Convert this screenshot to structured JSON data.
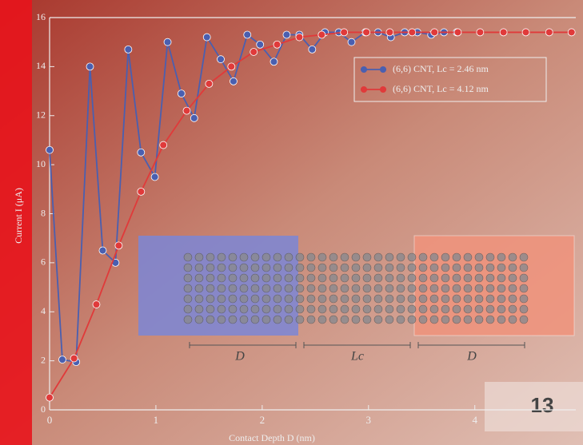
{
  "page_number": "13",
  "chart_data": {
    "type": "line",
    "x_label": "Contact Depth D (nm)",
    "y_label": "Current I (μA)",
    "xlim": [
      0,
      4.95
    ],
    "ylim": [
      0,
      16
    ],
    "xticks": [
      0,
      1,
      2,
      3,
      4
    ],
    "yticks": [
      0,
      2,
      4,
      6,
      8,
      10,
      12,
      14,
      16
    ],
    "legend": "upper right",
    "series": [
      {
        "name": "(6,6) CNT, Lc = 2.46 nm",
        "color": "#4a5fb0",
        "x": [
          0,
          0.12,
          0.25,
          0.38,
          0.5,
          0.62,
          0.74,
          0.86,
          0.99,
          1.11,
          1.24,
          1.36,
          1.48,
          1.61,
          1.73,
          1.86,
          1.98,
          2.11,
          2.23,
          2.35,
          2.47,
          2.59,
          2.72,
          2.84,
          2.97,
          3.09,
          3.21,
          3.34,
          3.46,
          3.59,
          3.71,
          3.83
        ],
        "values": [
          10.6,
          2.05,
          1.95,
          14,
          6.5,
          6.0,
          14.7,
          10.5,
          9.5,
          15.0,
          12.9,
          11.9,
          15.2,
          14.3,
          13.4,
          15.3,
          14.9,
          14.2,
          15.3,
          15.3,
          14.7,
          15.4,
          15.4,
          15.0,
          15.4,
          15.4,
          15.2,
          15.4,
          15.4,
          15.3,
          15.4,
          15.4
        ]
      },
      {
        "name": "(6,6) CNT, Lc = 4.12 nm",
        "color": "#e03a3a",
        "x": [
          0,
          0.23,
          0.44,
          0.65,
          0.86,
          1.07,
          1.29,
          1.5,
          1.71,
          1.92,
          2.14,
          2.35,
          2.56,
          2.77,
          2.98,
          3.2,
          3.41,
          3.62,
          3.84,
          4.05,
          4.27,
          4.48,
          4.7,
          4.91
        ],
        "values": [
          0.5,
          2.1,
          4.3,
          6.7,
          8.9,
          10.8,
          12.2,
          13.3,
          14.0,
          14.6,
          14.9,
          15.2,
          15.3,
          15.4,
          15.4,
          15.4,
          15.4,
          15.4,
          15.4,
          15.4,
          15.4,
          15.4,
          15.4,
          15.4
        ]
      }
    ],
    "diagram_labels": [
      "D",
      "Lc",
      "D"
    ]
  }
}
